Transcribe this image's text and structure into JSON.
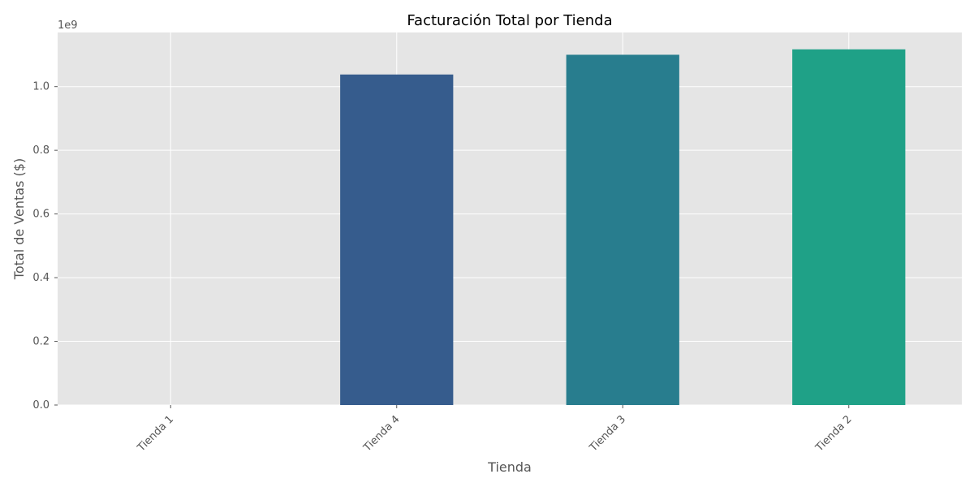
{
  "chart_data": {
    "type": "bar",
    "title": "Facturación Total por Tienda",
    "xlabel": "Tienda",
    "ylabel": "Total de Ventas ($)",
    "y_offset_label": "1e9",
    "categories": [
      "Tienda 1",
      "Tienda 4",
      "Tienda 3",
      "Tienda 2"
    ],
    "values": [
      0,
      1038000000,
      1100000000,
      1117000000
    ],
    "colors": [
      "#3b528b",
      "#365c8d",
      "#287d8e",
      "#1fa187"
    ],
    "ylim": [
      0,
      1170000000
    ],
    "yticks": [
      0,
      200000000,
      400000000,
      600000000,
      800000000,
      1000000000
    ],
    "ytick_labels": [
      "0.0",
      "0.2",
      "0.4",
      "0.6",
      "0.8",
      "1.0"
    ],
    "grid": true,
    "background": "#e5e5e5"
  }
}
